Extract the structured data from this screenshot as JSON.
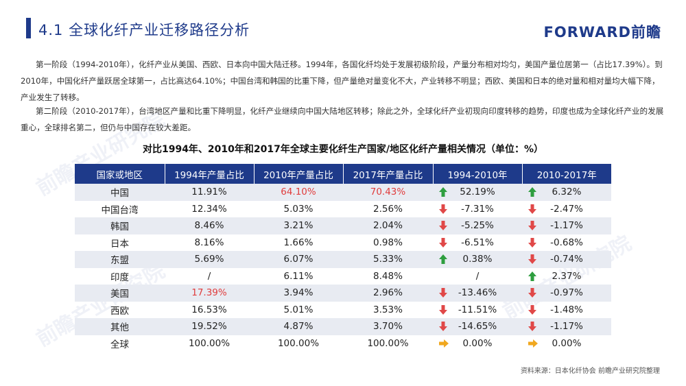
{
  "header": {
    "title": "4.1  全球化纤产业迁移路径分析",
    "logo_text": "FORWARD前瞻"
  },
  "paragraphs": [
    "第一阶段（1994-2010年），化纤产业从美国、西欧、日本向中国大陆迁移。1994年，各国化纤均处于发展初级阶段，产量分布相对均匀，美国产量位居第一（占比17.39%）。到2010年，中国化纤产量跃居全球第一，占比高达64.10%；中国台湾和韩国的比重下降，但产量绝对量变化不大，产业转移不明显；西欧、美国和日本的绝对量和相对量均大幅下降，产业发生了转移。",
    "第二阶段（2010-2017年），台湾地区产量和比重下降明显，化纤产业继续向中国大陆地区转移；除此之外，全球化纤产业初现向印度转移的趋势，印度也成为全球化纤产业的发展重心，全球排名第二，但仍与中国存在较大差距。"
  ],
  "table": {
    "title": "对比1994年、2010年和2017年全球主要化纤生产国家/地区化纤产量相关情况（单位：%）",
    "headers": [
      "国家或地区",
      "1994年产量占比",
      "2010年产量占比",
      "2017年产量占比",
      "1994-2010年",
      "2010-2017年"
    ],
    "rows": [
      {
        "region": "中国",
        "y1994": "11.91%",
        "y2010": "64.10%",
        "y2017": "70.43%",
        "chg1": "52.19%",
        "dir1": "up",
        "chg2": "6.32%",
        "dir2": "up",
        "red": [
          "y2010",
          "y2017"
        ]
      },
      {
        "region": "中国台湾",
        "y1994": "12.34%",
        "y2010": "5.03%",
        "y2017": "2.56%",
        "chg1": "-7.31%",
        "dir1": "down",
        "chg2": "-2.47%",
        "dir2": "down",
        "red": []
      },
      {
        "region": "韩国",
        "y1994": "8.46%",
        "y2010": "3.21%",
        "y2017": "2.04%",
        "chg1": "-5.25%",
        "dir1": "down",
        "chg2": "-1.17%",
        "dir2": "down",
        "red": []
      },
      {
        "region": "日本",
        "y1994": "8.16%",
        "y2010": "1.66%",
        "y2017": "0.98%",
        "chg1": "-6.51%",
        "dir1": "down",
        "chg2": "-0.68%",
        "dir2": "down",
        "red": []
      },
      {
        "region": "东盟",
        "y1994": "5.69%",
        "y2010": "6.07%",
        "y2017": "5.33%",
        "chg1": "0.38%",
        "dir1": "up",
        "chg2": "-0.74%",
        "dir2": "down",
        "red": []
      },
      {
        "region": "印度",
        "y1994": "/",
        "y2010": "6.11%",
        "y2017": "8.48%",
        "chg1": "/",
        "dir1": "none",
        "chg2": "2.37%",
        "dir2": "up",
        "red": []
      },
      {
        "region": "美国",
        "y1994": "17.39%",
        "y2010": "3.94%",
        "y2017": "2.96%",
        "chg1": "-13.46%",
        "dir1": "down",
        "chg2": "-0.97%",
        "dir2": "down",
        "red": [
          "y1994"
        ]
      },
      {
        "region": "西欧",
        "y1994": "16.53%",
        "y2010": "5.01%",
        "y2017": "3.53%",
        "chg1": "-11.51%",
        "dir1": "down",
        "chg2": "-1.48%",
        "dir2": "down",
        "red": []
      },
      {
        "region": "其他",
        "y1994": "19.52%",
        "y2010": "4.87%",
        "y2017": "3.70%",
        "chg1": "-14.65%",
        "dir1": "down",
        "chg2": "-1.17%",
        "dir2": "down",
        "red": []
      },
      {
        "region": "全球",
        "y1994": "100.00%",
        "y2010": "100.00%",
        "y2017": "100.00%",
        "chg1": "0.00%",
        "dir1": "flat",
        "chg2": "0.00%",
        "dir2": "flat",
        "red": []
      }
    ]
  },
  "source": "资料来源：日本化纤协会 前瞻产业研究院整理",
  "colors": {
    "brand": "#1e3a8a",
    "highlight_red": "#e03c3c",
    "arrow_up": "#2e9e3f",
    "arrow_down": "#e04848",
    "arrow_flat": "#f0a820",
    "row_shade": "#e8ebf2"
  }
}
